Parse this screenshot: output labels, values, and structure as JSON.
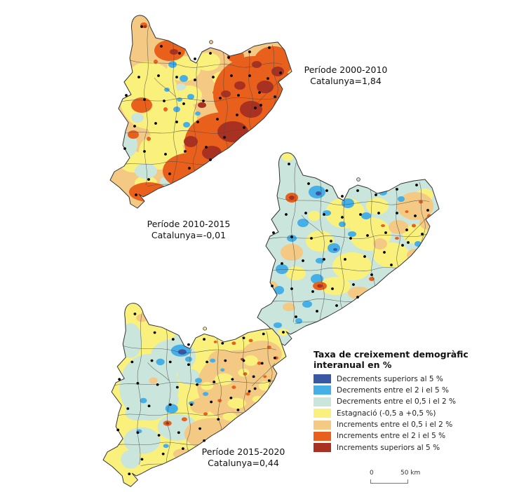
{
  "maps": [
    {
      "name": "map-periode-2000-2010",
      "label_line1": "Període 2000-2010",
      "label_line2": "Catalunya=1,84"
    },
    {
      "name": "map-periode-2010-2015",
      "label_line1": "Període 2010-2015",
      "label_line2": "Catalunya=-0,01"
    },
    {
      "name": "map-periode-2015-2020",
      "label_line1": "Període 2015-2020",
      "label_line2": "Catalunya=0,44"
    }
  ],
  "legend": {
    "title": "Taxa de creixement demogràfic\ninteranual en %",
    "items": [
      {
        "label": "Decrements superiors al 5 %",
        "color": "#3A57A5"
      },
      {
        "label": "Decrements entre el 2 i el 5 %",
        "color": "#46AFE5"
      },
      {
        "label": "Decrements entre el 0,5 i el 2 %",
        "color": "#C9E5DC"
      },
      {
        "label": "Estagnació (-0,5 a +0,5 %)",
        "color": "#FAF17D"
      },
      {
        "label": "Increments entre el 0,5 i el 2 %",
        "color": "#F4C983"
      },
      {
        "label": "Increments entre el 2 i el 5 %",
        "color": "#E8601C"
      },
      {
        "label": "Increments superiors al 5 %",
        "color": "#A93121"
      }
    ]
  },
  "scale_bar": {
    "start_label": "0",
    "end_label": "50 km"
  }
}
